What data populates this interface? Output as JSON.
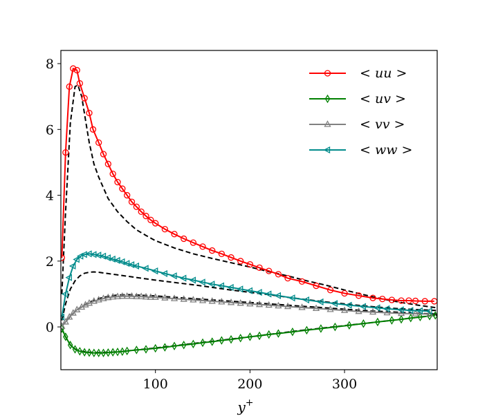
{
  "chart_data": {
    "type": "line",
    "xlabel": "y+",
    "xlabel_base": "y",
    "xlabel_sup": "+",
    "ylabel": "",
    "title": "",
    "xlim": [
      0,
      398
    ],
    "ylim": [
      -1.3,
      8.4
    ],
    "xticks": [
      100,
      200,
      300
    ],
    "yticks": [
      0,
      2,
      4,
      6,
      8
    ],
    "grid": false,
    "legend_position": "top-right",
    "series": [
      {
        "name": "< uu >",
        "color": "#ff0000",
        "marker": "circle",
        "style": "solid",
        "x": [
          1,
          5,
          9,
          13,
          17,
          20,
          25,
          30,
          34,
          40,
          45,
          50,
          55,
          60,
          65,
          70,
          75,
          80,
          85,
          90,
          95,
          100,
          110,
          120,
          130,
          140,
          150,
          160,
          170,
          180,
          190,
          200,
          210,
          220,
          230,
          240,
          255,
          270,
          285,
          300,
          315,
          330,
          340,
          350,
          360,
          368,
          375,
          385,
          395
        ],
        "y": [
          2.1,
          5.3,
          7.3,
          7.85,
          7.8,
          7.4,
          6.95,
          6.5,
          6.0,
          5.6,
          5.25,
          4.95,
          4.65,
          4.4,
          4.2,
          4.0,
          3.8,
          3.65,
          3.5,
          3.37,
          3.25,
          3.15,
          2.97,
          2.82,
          2.68,
          2.56,
          2.44,
          2.32,
          2.22,
          2.11,
          2.0,
          1.9,
          1.8,
          1.7,
          1.6,
          1.48,
          1.38,
          1.25,
          1.12,
          1.02,
          0.95,
          0.88,
          0.85,
          0.82,
          0.8,
          0.8,
          0.79,
          0.78,
          0.78
        ]
      },
      {
        "name": "< uv >",
        "color": "#008000",
        "marker": "thin_diamond",
        "style": "solid",
        "x": [
          1,
          5,
          10,
          15,
          20,
          25,
          30,
          35,
          40,
          45,
          50,
          55,
          60,
          65,
          70,
          80,
          90,
          100,
          110,
          120,
          130,
          140,
          150,
          160,
          170,
          180,
          190,
          200,
          210,
          220,
          230,
          245,
          260,
          275,
          290,
          305,
          320,
          335,
          350,
          360,
          370,
          380,
          390,
          396
        ],
        "y": [
          -0.05,
          -0.3,
          -0.55,
          -0.68,
          -0.74,
          -0.77,
          -0.78,
          -0.79,
          -0.79,
          -0.79,
          -0.78,
          -0.77,
          -0.76,
          -0.75,
          -0.73,
          -0.7,
          -0.68,
          -0.65,
          -0.62,
          -0.58,
          -0.55,
          -0.52,
          -0.48,
          -0.45,
          -0.41,
          -0.38,
          -0.34,
          -0.3,
          -0.27,
          -0.23,
          -0.2,
          -0.15,
          -0.1,
          -0.05,
          0.0,
          0.05,
          0.1,
          0.15,
          0.2,
          0.23,
          0.27,
          0.3,
          0.33,
          0.35
        ]
      },
      {
        "name": "< vv >",
        "color": "#808080",
        "marker": "triangle_up",
        "style": "solid",
        "x": [
          1,
          5,
          9,
          13,
          17,
          22,
          26,
          30,
          35,
          40,
          45,
          50,
          55,
          60,
          65,
          70,
          75,
          80,
          85,
          90,
          95,
          100,
          110,
          120,
          130,
          140,
          150,
          160,
          170,
          180,
          190,
          200,
          210,
          220,
          230,
          240,
          255,
          270,
          285,
          300,
          315,
          330,
          345,
          360,
          375,
          390
        ],
        "y": [
          0.02,
          0.15,
          0.3,
          0.42,
          0.52,
          0.6,
          0.67,
          0.72,
          0.78,
          0.82,
          0.86,
          0.89,
          0.91,
          0.92,
          0.93,
          0.93,
          0.93,
          0.92,
          0.92,
          0.91,
          0.9,
          0.9,
          0.88,
          0.86,
          0.84,
          0.82,
          0.8,
          0.78,
          0.76,
          0.74,
          0.72,
          0.7,
          0.68,
          0.66,
          0.64,
          0.62,
          0.59,
          0.56,
          0.53,
          0.5,
          0.47,
          0.45,
          0.43,
          0.41,
          0.4,
          0.39
        ]
      },
      {
        "name": "< ww >",
        "color": "#008b8b",
        "marker": "triangle_left",
        "style": "solid",
        "x": [
          1,
          5,
          9,
          13,
          17,
          21,
          25,
          30,
          35,
          40,
          45,
          50,
          55,
          60,
          65,
          70,
          75,
          80,
          90,
          100,
          110,
          120,
          130,
          140,
          150,
          160,
          170,
          180,
          190,
          200,
          210,
          220,
          230,
          245,
          260,
          275,
          290,
          305,
          320,
          335,
          345,
          360,
          370,
          380,
          390
        ],
        "y": [
          0.3,
          1.0,
          1.5,
          1.85,
          2.05,
          2.15,
          2.2,
          2.22,
          2.2,
          2.18,
          2.15,
          2.1,
          2.06,
          2.02,
          1.98,
          1.93,
          1.89,
          1.85,
          1.78,
          1.7,
          1.62,
          1.55,
          1.48,
          1.42,
          1.36,
          1.3,
          1.25,
          1.2,
          1.15,
          1.1,
          1.05,
          1.0,
          0.95,
          0.88,
          0.82,
          0.76,
          0.71,
          0.66,
          0.62,
          0.58,
          0.55,
          0.52,
          0.5,
          0.49,
          0.48
        ]
      },
      {
        "name": "",
        "color": "#000000",
        "marker": "none",
        "style": "dashed",
        "x": [
          1,
          5,
          10,
          15,
          18,
          22,
          26,
          30,
          35,
          40,
          50,
          60,
          70,
          80,
          90,
          100,
          120,
          140,
          160,
          180,
          200,
          220,
          240,
          260,
          280,
          300,
          320,
          340,
          360,
          380,
          398
        ],
        "y": [
          1.0,
          3.5,
          6.2,
          7.3,
          7.35,
          7.0,
          6.3,
          5.6,
          4.95,
          4.55,
          3.9,
          3.5,
          3.2,
          2.95,
          2.78,
          2.62,
          2.4,
          2.22,
          2.08,
          1.95,
          1.82,
          1.68,
          1.55,
          1.4,
          1.27,
          1.12,
          0.98,
          0.85,
          0.74,
          0.65,
          0.58
        ]
      },
      {
        "name": "",
        "color": "#000000",
        "marker": "none",
        "style": "dashed",
        "x": [
          1,
          5,
          10,
          15,
          20,
          25,
          30,
          35,
          40,
          50,
          60,
          70,
          80,
          100,
          120,
          140,
          160,
          180,
          200,
          220,
          240,
          260,
          280,
          300,
          320,
          340,
          360,
          380,
          398
        ],
        "y": [
          0.2,
          0.7,
          1.15,
          1.4,
          1.55,
          1.63,
          1.66,
          1.67,
          1.66,
          1.62,
          1.58,
          1.54,
          1.5,
          1.42,
          1.35,
          1.28,
          1.2,
          1.12,
          1.05,
          0.98,
          0.9,
          0.83,
          0.76,
          0.7,
          0.64,
          0.59,
          0.55,
          0.52,
          0.5
        ]
      },
      {
        "name": "",
        "color": "#000000",
        "marker": "none",
        "style": "dashed",
        "x": [
          1,
          5,
          10,
          15,
          20,
          30,
          40,
          50,
          60,
          70,
          80,
          100,
          120,
          140,
          160,
          180,
          200,
          220,
          240,
          260,
          280,
          300,
          320,
          340,
          360,
          380,
          398
        ],
        "y": [
          0.02,
          0.15,
          0.32,
          0.47,
          0.58,
          0.75,
          0.86,
          0.93,
          0.97,
          0.98,
          0.97,
          0.94,
          0.9,
          0.86,
          0.82,
          0.78,
          0.74,
          0.7,
          0.66,
          0.62,
          0.58,
          0.54,
          0.5,
          0.47,
          0.44,
          0.41,
          0.39
        ]
      },
      {
        "name": "",
        "color": "#000000",
        "marker": "none",
        "style": "dashed",
        "x": [
          1,
          5,
          10,
          15,
          20,
          30,
          40,
          60,
          80,
          100,
          150,
          200,
          250,
          300,
          350,
          398
        ],
        "y": [
          -0.05,
          -0.3,
          -0.55,
          -0.67,
          -0.73,
          -0.77,
          -0.78,
          -0.76,
          -0.7,
          -0.64,
          -0.47,
          -0.3,
          -0.12,
          0.04,
          0.2,
          0.36
        ]
      }
    ]
  }
}
